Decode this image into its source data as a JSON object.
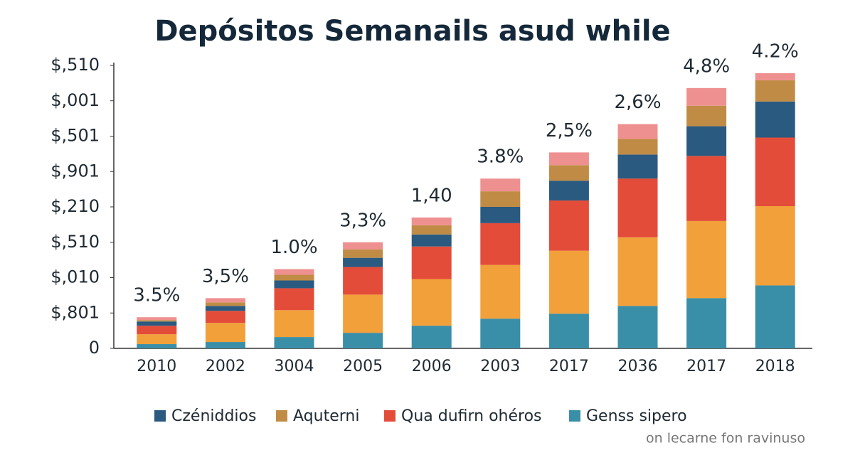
{
  "chart_data": {
    "type": "stacked_bar",
    "title": "Depósitos Semanails asud while",
    "categories": [
      "2010",
      "2002",
      "3004",
      "2005",
      "2006",
      "2003",
      "2017",
      "2036",
      "2017",
      "2018"
    ],
    "series": [
      {
        "name": "Genss sipero",
        "color": "#3a8fa8",
        "values": [
          12,
          18,
          32,
          44,
          64,
          84,
          98,
          120,
          142,
          178
        ]
      },
      {
        "name": null,
        "color": "#f2a03a",
        "values": [
          28,
          54,
          76,
          108,
          132,
          152,
          178,
          194,
          218,
          224
        ]
      },
      {
        "name": "Qua dufirn ohéros",
        "color": "#e44c3a",
        "values": [
          24,
          34,
          62,
          78,
          92,
          118,
          142,
          166,
          184,
          194
        ]
      },
      {
        "name": "Czéniddios",
        "color": "#2a5a80",
        "values": [
          12,
          14,
          22,
          26,
          34,
          46,
          56,
          68,
          84,
          102
        ]
      },
      {
        "name": "Aquterni",
        "color": "#c08c45",
        "values": [
          4,
          10,
          16,
          24,
          26,
          44,
          44,
          44,
          58,
          60
        ]
      },
      {
        "name": null,
        "color": "#ef9090",
        "values": [
          8,
          12,
          16,
          20,
          22,
          36,
          36,
          42,
          50,
          20
        ]
      }
    ],
    "bar_labels": [
      "3.5%",
      "3,5%",
      "1.0%",
      "3,3%",
      "1,40",
      "3.8%",
      "2,5%",
      "2,6%",
      "4,8%",
      "4.2%"
    ],
    "ylim": [
      0,
      800
    ],
    "yticks": [
      0,
      {
        "value": 100,
        "label": "$,801"
      },
      {
        "value": 200,
        "label": "$,010"
      },
      {
        "value": 300,
        "label": "$,510"
      },
      {
        "value": 400,
        "label": "$,210"
      },
      {
        "value": 500,
        "label": "$,901"
      },
      {
        "value": 600,
        "label": "$,501"
      },
      {
        "value": 700,
        "label": "$,001"
      },
      {
        "value": 800,
        "label": "$,510"
      }
    ],
    "legend_order": [
      3,
      4,
      2,
      0
    ],
    "footnote": "on lecarne fon ravinuso"
  }
}
